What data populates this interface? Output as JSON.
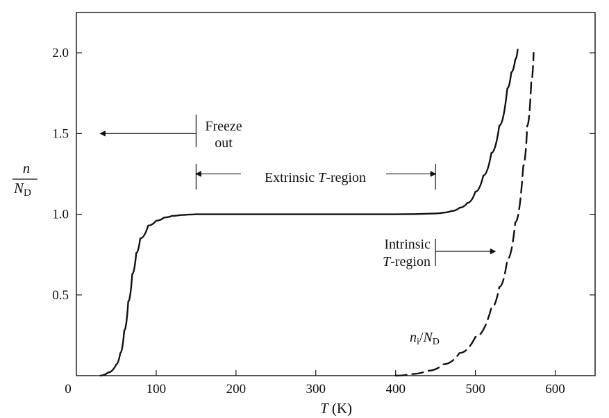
{
  "chart_data": {
    "type": "line",
    "title": "",
    "xlabel": "T (K)",
    "ylabel": "n/N_D",
    "xlim": [
      0,
      650
    ],
    "ylim": [
      0,
      2.25
    ],
    "x_ticks": [
      0,
      100,
      200,
      300,
      400,
      500,
      600
    ],
    "x_tick_labels": [
      "0",
      "100",
      "200",
      "300",
      "400",
      "500",
      "600"
    ],
    "y_ticks": [
      0.5,
      1.0,
      1.5,
      2.0
    ],
    "y_tick_labels": [
      "0.5",
      "1.0",
      "1.5",
      "2.0"
    ],
    "grid": false,
    "legend": "none",
    "series": [
      {
        "style": "solid",
        "color": "#111111",
        "x": [
          30,
          40,
          50,
          55,
          60,
          65,
          70,
          75,
          80,
          90,
          100,
          110,
          120,
          130,
          140,
          150,
          200,
          300,
          400,
          450,
          460,
          470,
          480,
          490,
          500,
          510,
          520,
          530,
          540,
          545,
          550,
          553
        ],
        "y": [
          0.0,
          0.02,
          0.07,
          0.14,
          0.28,
          0.46,
          0.63,
          0.76,
          0.85,
          0.93,
          0.96,
          0.98,
          0.99,
          0.995,
          0.998,
          1.0,
          1.0,
          1.0,
          1.0,
          1.005,
          1.01,
          1.02,
          1.04,
          1.07,
          1.14,
          1.24,
          1.38,
          1.55,
          1.78,
          1.88,
          1.96,
          2.02
        ]
      },
      {
        "style": "dashed",
        "color": "#111111",
        "x": [
          400,
          420,
          440,
          460,
          480,
          500,
          520,
          530,
          540,
          550,
          560,
          565,
          570,
          573
        ],
        "y": [
          0.0,
          0.01,
          0.03,
          0.07,
          0.14,
          0.24,
          0.42,
          0.55,
          0.72,
          0.95,
          1.3,
          1.55,
          1.82,
          2.0
        ]
      }
    ],
    "annotations": {
      "freeze": {
        "line1": "Freeze",
        "line2": "out",
        "bar_x": 150,
        "arrow_from": 150,
        "arrow_to": 30,
        "y": 1.5
      },
      "extrinsic": {
        "text_prefix": "Extrinsic ",
        "text_T": "T",
        "text_suffix": "-region",
        "x_start": 150,
        "x_end": 450,
        "y": 1.25
      },
      "intrinsic": {
        "line1": "Intrinsic",
        "line2_T": "T",
        "line2_suffix": "-region",
        "bar_x": 450,
        "arrow_from": 450,
        "arrow_to": 525,
        "y": 0.77
      },
      "ni_label": {
        "n": "n",
        "sub_i": "i",
        "slash": "/",
        "N": "N",
        "sub_D": "D",
        "x": 0,
        "y": 0
      }
    },
    "axis_label_parts": {
      "y_num": "n",
      "y_den_N": "N",
      "y_den_sub": "D",
      "x_T": "T",
      "x_unit": " (K)"
    }
  }
}
